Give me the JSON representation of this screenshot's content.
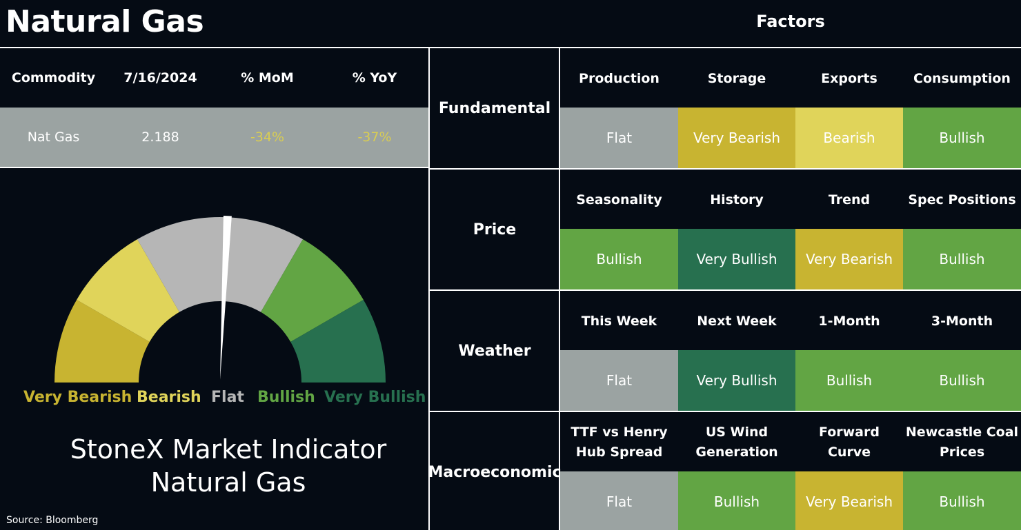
{
  "title": "Natural Gas",
  "factors_title": "Factors",
  "commodity_table": {
    "headers": [
      "Commodity",
      "7/16/2024",
      "% MoM",
      "% YoY"
    ],
    "row": [
      "Nat Gas",
      "2.188",
      "-34%",
      "-37%"
    ]
  },
  "gauge": {
    "labels": [
      "Very Bearish",
      "Bearish",
      "Flat",
      "Bullish",
      "Very Bullish"
    ],
    "label_colors": [
      "#c8b431",
      "#e0d45a",
      "#b6b6b6",
      "#62a544",
      "#27704f"
    ],
    "segment_colors": [
      "#c8b431",
      "#e0d45a",
      "#b6b6b6",
      "#b6b6b6",
      "#62a544",
      "#27704f"
    ],
    "needle_value": "Flat"
  },
  "indicator_title": {
    "line1": "StoneX Market Indicator",
    "line2": "Natural Gas"
  },
  "source": "Source: Bloomberg",
  "colors": {
    "Flat": "#9ba3a2",
    "Very Bearish": "#c8b431",
    "Bearish": "#e0d45a",
    "Bullish": "#62a544",
    "Very Bullish": "#27704f"
  },
  "groups": [
    {
      "name": "Fundamental",
      "factors": [
        "Production",
        "Storage",
        "Exports",
        "Consumption"
      ],
      "values": [
        "Flat",
        "Very Bearish",
        "Bearish",
        "Bullish"
      ]
    },
    {
      "name": "Price",
      "factors": [
        "Seasonality",
        "History",
        "Trend",
        "Spec Positions"
      ],
      "values": [
        "Bullish",
        "Very Bullish",
        "Very Bearish",
        "Bullish"
      ]
    },
    {
      "name": "Weather",
      "factors": [
        "This Week",
        "Next Week",
        "1-Month",
        "3-Month"
      ],
      "values": [
        "Flat",
        "Very Bullish",
        "Bullish",
        "Bullish"
      ]
    },
    {
      "name": "Macroeconomic",
      "factors": [
        "TTF vs Henry Hub Spread",
        "US Wind Generation",
        "Forward Curve",
        "Newcastle Coal Prices"
      ],
      "values": [
        "Flat",
        "Bullish",
        "Very Bearish",
        "Bullish"
      ]
    }
  ]
}
